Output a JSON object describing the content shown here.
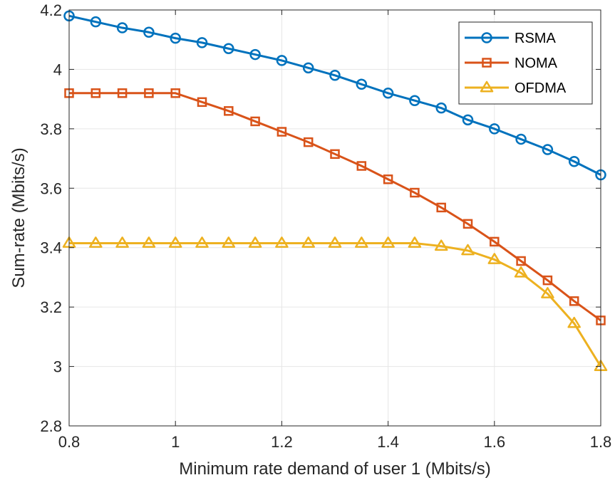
{
  "chart_data": {
    "type": "line",
    "title": "",
    "xlabel": "Minimum rate demand of user 1 (Mbits/s)",
    "ylabel": "Sum-rate (Mbits/s)",
    "xlim": [
      0.8,
      1.8
    ],
    "ylim": [
      2.8,
      4.2
    ],
    "xticks": [
      "0.8",
      "1",
      "1.2",
      "1.4",
      "1.6",
      "1.8"
    ],
    "yticks": [
      "2.8",
      "3",
      "3.2",
      "3.4",
      "3.6",
      "3.8",
      "4",
      "4.2"
    ],
    "grid": true,
    "legend_position": "top-right",
    "x": [
      0.8,
      0.85,
      0.9,
      0.95,
      1.0,
      1.05,
      1.1,
      1.15,
      1.2,
      1.25,
      1.3,
      1.35,
      1.4,
      1.45,
      1.5,
      1.55,
      1.6,
      1.65,
      1.7,
      1.75,
      1.8
    ],
    "series": [
      {
        "name": "RSMA",
        "color": "#0072BD",
        "marker": "circle",
        "values": [
          4.18,
          4.16,
          4.14,
          4.125,
          4.105,
          4.09,
          4.07,
          4.05,
          4.03,
          4.005,
          3.98,
          3.95,
          3.92,
          3.895,
          3.87,
          3.83,
          3.8,
          3.765,
          3.73,
          3.69,
          3.645
        ]
      },
      {
        "name": "NOMA",
        "color": "#D95319",
        "marker": "square",
        "values": [
          3.92,
          3.92,
          3.92,
          3.92,
          3.92,
          3.89,
          3.86,
          3.825,
          3.79,
          3.755,
          3.715,
          3.675,
          3.63,
          3.585,
          3.535,
          3.48,
          3.42,
          3.355,
          3.29,
          3.22,
          3.155
        ]
      },
      {
        "name": "OFDMA",
        "color": "#EDB120",
        "marker": "triangle",
        "values": [
          3.415,
          3.415,
          3.415,
          3.415,
          3.415,
          3.415,
          3.415,
          3.415,
          3.415,
          3.415,
          3.415,
          3.415,
          3.415,
          3.415,
          3.405,
          3.39,
          3.36,
          3.315,
          3.245,
          3.145,
          3.0
        ]
      }
    ]
  }
}
